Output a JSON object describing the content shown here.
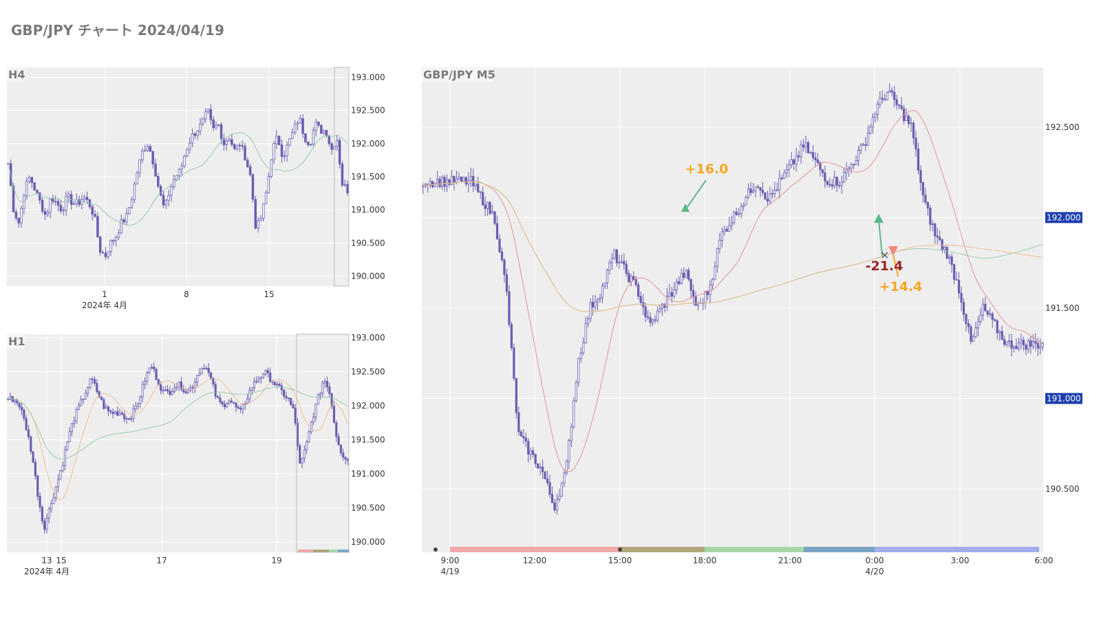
{
  "page": {
    "title": "GBP/JPY チャート 2024/04/19"
  },
  "colors": {
    "candle": "#6a5cb0",
    "ma_short": "#e08a8a",
    "ma_mid": "#8fc9a6",
    "ma_long": "#f0b98a",
    "price_badge": "#1e40af",
    "entry_long": "#5cb88a",
    "exit_short": "#f08a7a",
    "profit": "#f5a623",
    "loss": "#9b2323"
  },
  "chart_data": [
    {
      "panel": "H4",
      "type": "candlestick",
      "title": "H4",
      "ylim": [
        189.85,
        193.15
      ],
      "y_ticks": [
        "190.000",
        "190.500",
        "191.000",
        "191.500",
        "192.000",
        "192.500",
        "193.000"
      ],
      "x_ticks": [
        "1",
        "8",
        "15"
      ],
      "x_sub_label": "2024年 4月",
      "close_series": [
        191.7,
        191.0,
        190.8,
        191.3,
        191.5,
        191.3,
        191.1,
        190.9,
        191.2,
        191.1,
        191.0,
        191.2,
        191.1,
        191.1,
        191.2,
        191.1,
        190.9,
        190.4,
        190.3,
        190.5,
        190.6,
        190.8,
        190.9,
        191.2,
        191.6,
        191.9,
        192.0,
        191.7,
        191.3,
        191.0,
        191.3,
        191.5,
        191.6,
        191.9,
        192.1,
        192.2,
        192.3,
        192.5,
        192.2,
        192.3,
        192.0,
        192.1,
        191.9,
        192.0,
        191.8,
        191.5,
        190.7,
        190.9,
        191.3,
        191.9,
        192.1,
        191.8,
        192.0,
        192.2,
        192.4,
        192.1,
        192.0,
        192.3,
        192.2,
        192.2,
        191.9,
        192.1,
        191.4,
        191.3
      ]
    },
    {
      "panel": "H1",
      "type": "candlestick",
      "title": "H1",
      "ylim": [
        189.85,
        193.05
      ],
      "y_ticks": [
        "190.000",
        "190.500",
        "191.000",
        "191.500",
        "192.000",
        "192.500",
        "193.000"
      ],
      "x_ticks": [
        "13",
        "15",
        "17",
        "19"
      ],
      "x_sub_label": "2024年 4月",
      "close_series": [
        192.1,
        192.1,
        192.0,
        191.7,
        191.3,
        190.7,
        190.2,
        190.5,
        190.8,
        191.1,
        191.5,
        191.8,
        192.0,
        192.2,
        192.4,
        192.2,
        192.0,
        191.9,
        191.9,
        191.9,
        191.8,
        191.9,
        192.1,
        192.4,
        192.6,
        192.4,
        192.2,
        192.2,
        192.3,
        192.3,
        192.2,
        192.3,
        192.5,
        192.6,
        192.4,
        192.1,
        192.0,
        192.1,
        192.0,
        191.9,
        192.1,
        192.3,
        192.4,
        192.5,
        192.4,
        192.3,
        192.2,
        192.1,
        191.9,
        191.1,
        191.4,
        191.8,
        192.1,
        192.4,
        192.2,
        191.6,
        191.3,
        191.2
      ]
    },
    {
      "panel": "M5",
      "type": "candlestick",
      "title": "GBP/JPY M5",
      "ylim": [
        190.15,
        192.83
      ],
      "y_ticks": [
        "190.500",
        "191.500",
        "192.500"
      ],
      "price_badges": [
        "192.000",
        "191.000"
      ],
      "x_ticks": [
        "9:00",
        "12:00",
        "15:00",
        "18:00",
        "21:00",
        "0:00",
        "3:00",
        "6:00"
      ],
      "x_sub_labels": [
        "4/19",
        "4/20"
      ],
      "close_series": [
        192.2,
        192.2,
        192.2,
        192.2,
        192.2,
        192.1,
        192.0,
        191.6,
        190.8,
        190.7,
        190.6,
        190.4,
        190.6,
        191.2,
        191.5,
        191.6,
        191.8,
        191.7,
        191.6,
        191.4,
        191.5,
        191.6,
        191.7,
        191.5,
        191.6,
        191.9,
        192.0,
        192.1,
        192.2,
        192.1,
        192.2,
        192.3,
        192.4,
        192.3,
        192.2,
        192.2,
        192.3,
        192.4,
        192.6,
        192.7,
        192.6,
        192.5,
        192.1,
        191.9,
        191.8,
        191.6,
        191.3,
        191.5,
        191.4,
        191.3,
        191.3,
        191.3,
        191.3
      ],
      "session_colors": [
        "#f0a8a8",
        "#b0a67a",
        "#a8d6a8",
        "#7aa4c6",
        "#a2aeea"
      ],
      "annotations": [
        {
          "text": "+16.0",
          "kind": "profit"
        },
        {
          "text": "-21.4",
          "kind": "loss"
        },
        {
          "text": "+14.4",
          "kind": "profit"
        }
      ]
    }
  ]
}
